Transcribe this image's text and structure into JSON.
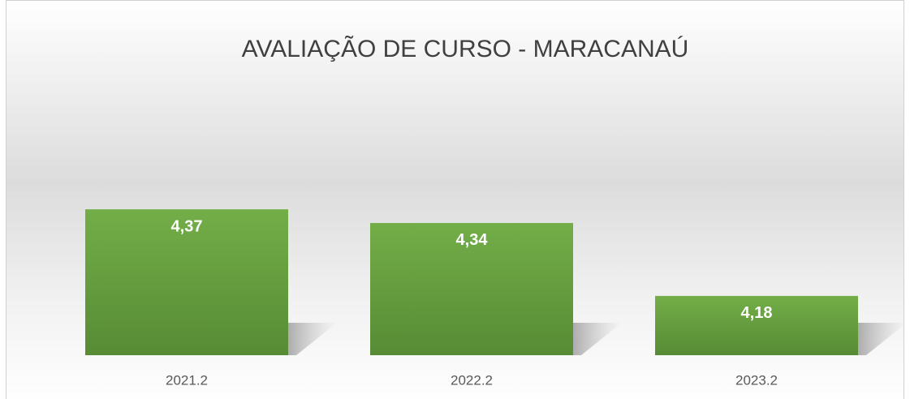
{
  "chart_data": {
    "type": "bar",
    "title": "AVALIAÇÃO DE CURSO - MARACANAÚ",
    "categories": [
      "2021.2",
      "2022.2",
      "2023.2"
    ],
    "values": [
      4.37,
      4.34,
      4.18
    ],
    "value_labels": [
      "4,37",
      "4,34",
      "4,18"
    ],
    "color": "#70ad47",
    "ylim": [
      4.05,
      4.5
    ]
  }
}
